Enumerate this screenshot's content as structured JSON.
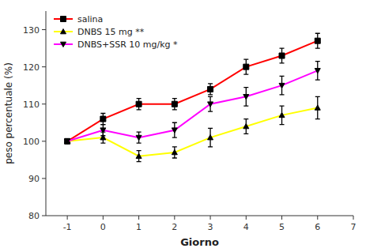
{
  "chart_data": {
    "type": "line",
    "xlabel": "Giorno",
    "ylabel": "peso percentuale (%)",
    "x": [
      -1,
      0,
      1,
      2,
      3,
      4,
      5,
      6
    ],
    "series": [
      {
        "name": "salina",
        "color": "#ff0000",
        "marker": "square",
        "values": [
          100,
          106,
          110,
          110,
          114,
          120,
          123,
          127
        ],
        "errors": [
          0.5,
          1.5,
          1.5,
          1.5,
          1.5,
          2.0,
          2.0,
          2.0
        ]
      },
      {
        "name": "DNBS 15 mg **",
        "color": "#ffff00",
        "marker": "triangle-up",
        "values": [
          100,
          101,
          96,
          97,
          101,
          104,
          107,
          109
        ],
        "errors": [
          0.5,
          1.5,
          1.5,
          1.5,
          2.5,
          2.0,
          2.5,
          3.0
        ]
      },
      {
        "name": "DNBS+SSR 10 mg/kg *",
        "color": "#ff00ff",
        "marker": "triangle-down",
        "values": [
          100,
          103,
          101,
          103,
          110,
          112,
          115,
          119
        ],
        "errors": [
          0.5,
          1.5,
          1.5,
          2.0,
          2.0,
          2.5,
          2.5,
          2.5
        ]
      }
    ],
    "xlim": [
      -1.6,
      7.0
    ],
    "ylim": [
      80,
      135
    ],
    "xticks": [
      -1,
      0,
      1,
      2,
      3,
      4,
      5,
      6,
      7
    ],
    "yticks": [
      80,
      90,
      100,
      110,
      120,
      130
    ],
    "grid": false,
    "legend": "upper left"
  }
}
